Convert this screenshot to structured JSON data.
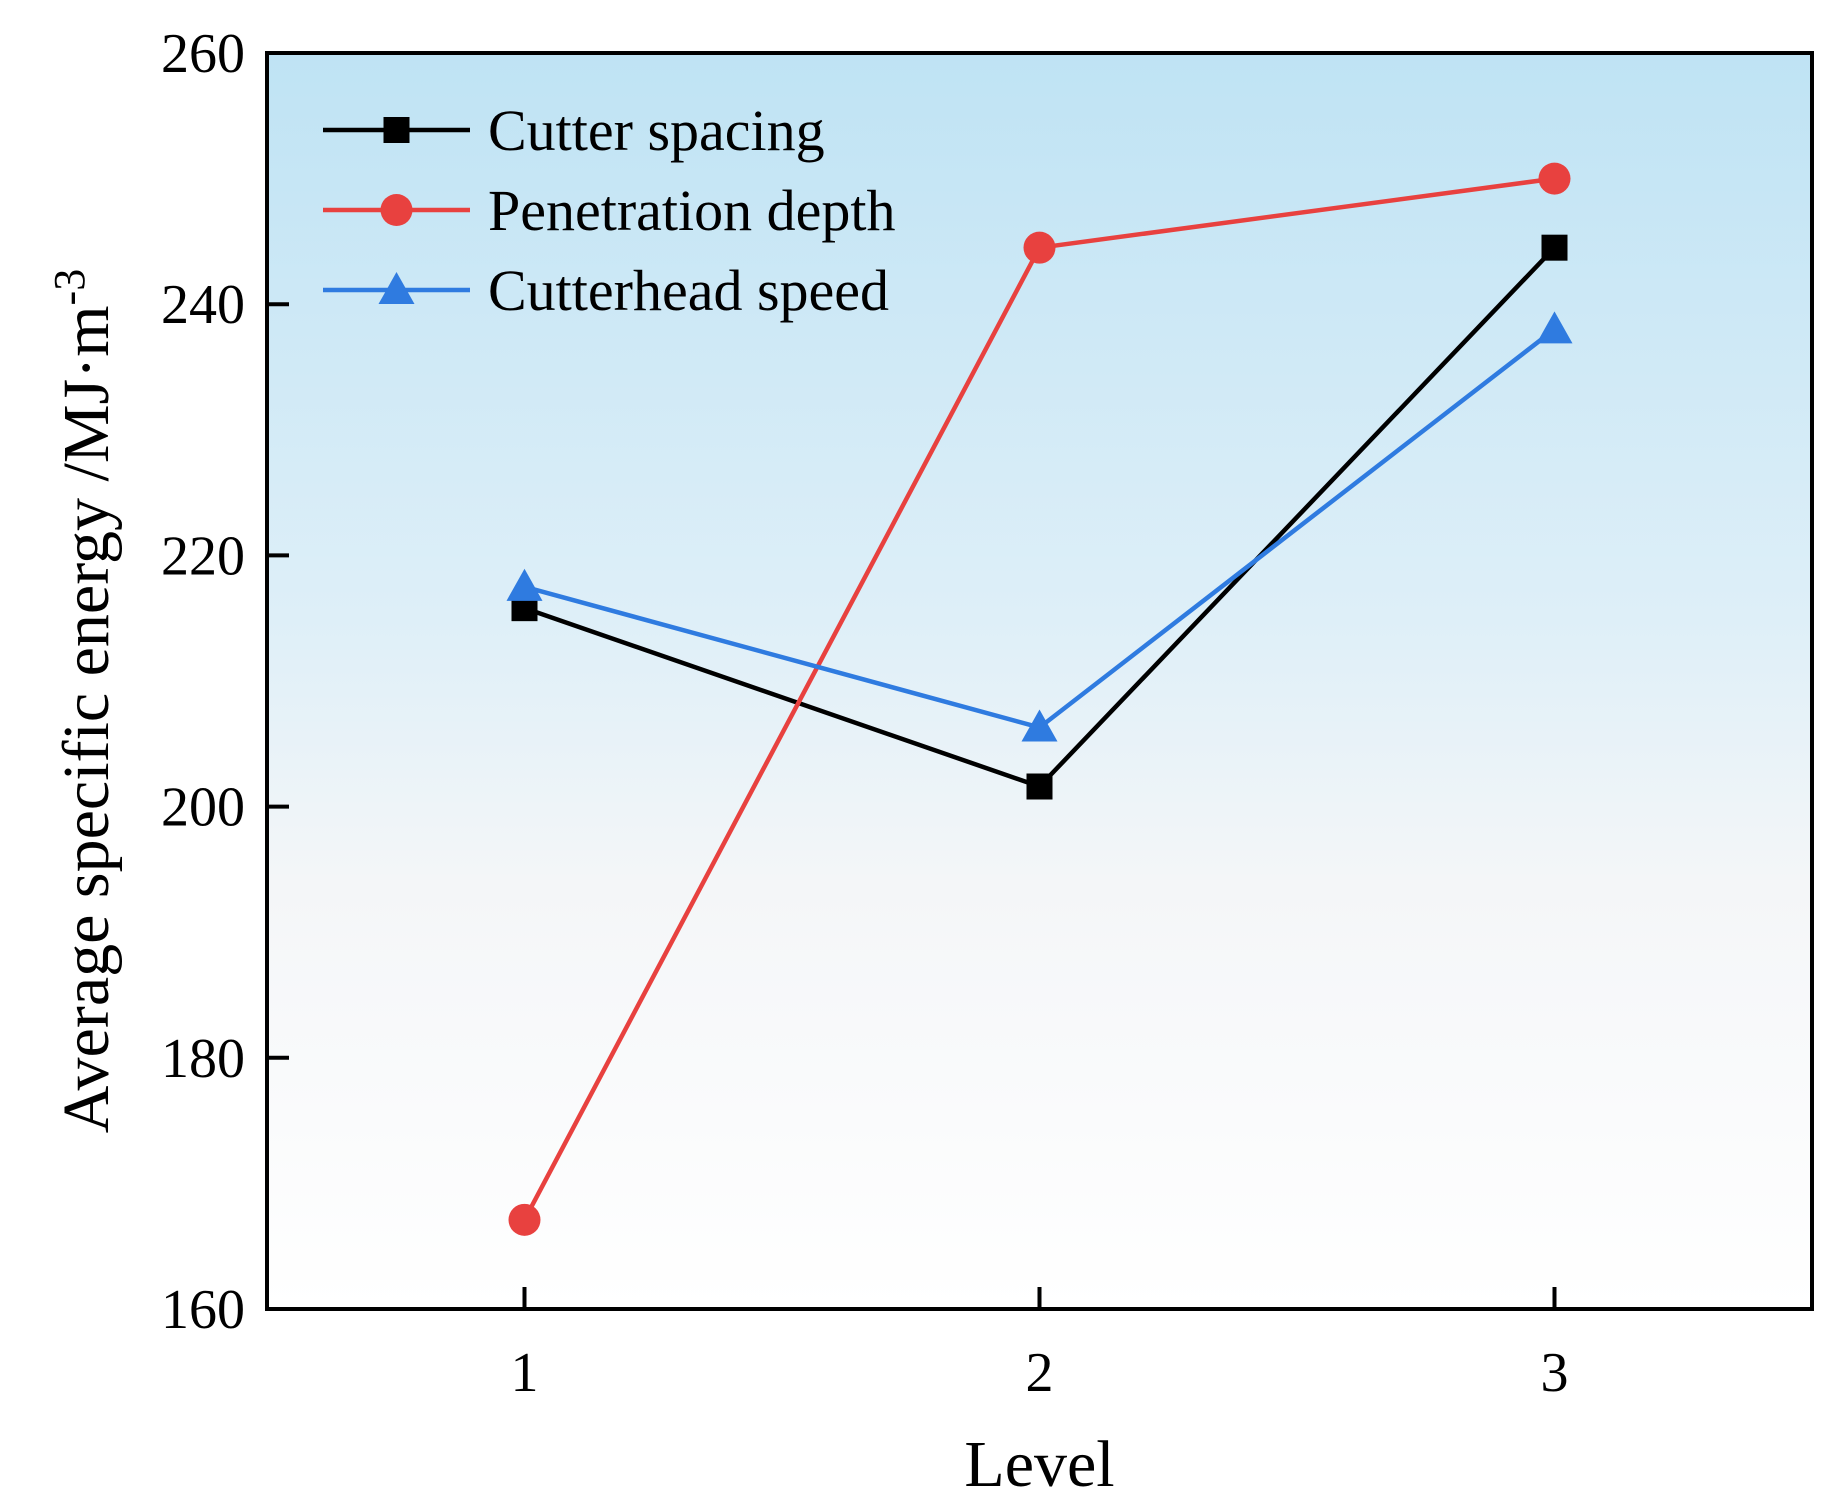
{
  "chart_data": {
    "type": "line",
    "title": "",
    "xlabel": "Level",
    "ylabel": "Average specific energy /MJ·m",
    "ylabel_superscript": "-3",
    "x": [
      1,
      2,
      3
    ],
    "xlim": [
      0.5,
      3.5
    ],
    "ylim": [
      160,
      260
    ],
    "x_ticks": [
      1,
      2,
      3
    ],
    "y_ticks": [
      160,
      180,
      200,
      220,
      240,
      260
    ],
    "legend_position": "top-left",
    "background": "vertical gradient light blue to white",
    "series": [
      {
        "name": "Cutter spacing",
        "values": [
          215.8,
          201.6,
          244.5
        ],
        "color": "#000000",
        "marker": "square"
      },
      {
        "name": "Penetration depth",
        "values": [
          167.1,
          244.5,
          250.0
        ],
        "color": "#e8413f",
        "marker": "circle"
      },
      {
        "name": "Cutterhead speed",
        "values": [
          217.5,
          206.3,
          238.0
        ],
        "color": "#2f7be0",
        "marker": "triangle"
      }
    ]
  }
}
